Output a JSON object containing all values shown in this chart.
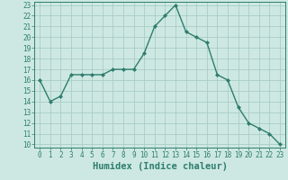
{
  "x": [
    0,
    1,
    2,
    3,
    4,
    5,
    6,
    7,
    8,
    9,
    10,
    11,
    12,
    13,
    14,
    15,
    16,
    17,
    18,
    19,
    20,
    21,
    22,
    23
  ],
  "y": [
    16,
    14,
    14.5,
    16.5,
    16.5,
    16.5,
    16.5,
    17,
    17,
    17,
    18.5,
    21,
    22,
    23,
    20.5,
    20,
    19.5,
    16.5,
    16,
    13.5,
    12,
    11.5,
    11,
    10
  ],
  "line_color": "#2e7d6e",
  "marker": "D",
  "marker_size": 2.0,
  "bg_color": "#cde8e2",
  "grid_color": "#a8cdc6",
  "xlabel": "Humidex (Indice chaleur)",
  "ylim": [
    10,
    23
  ],
  "xlim": [
    0,
    23
  ],
  "yticks": [
    10,
    11,
    12,
    13,
    14,
    15,
    16,
    17,
    18,
    19,
    20,
    21,
    22,
    23
  ],
  "xticks": [
    0,
    1,
    2,
    3,
    4,
    5,
    6,
    7,
    8,
    9,
    10,
    11,
    12,
    13,
    14,
    15,
    16,
    17,
    18,
    19,
    20,
    21,
    22,
    23
  ],
  "tick_color": "#2e7d6e",
  "label_fontsize": 5.5,
  "xlabel_fontsize": 7.5,
  "axis_color": "#2e7d6e",
  "line_width": 1.0
}
